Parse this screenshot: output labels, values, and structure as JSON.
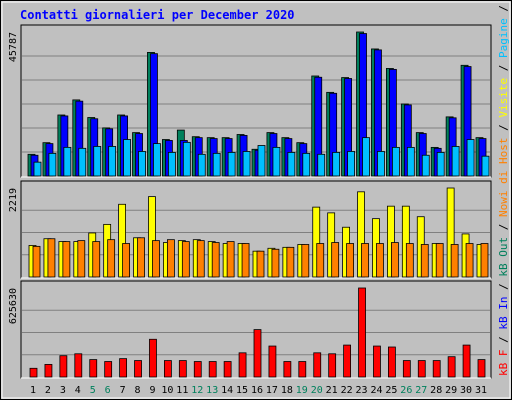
{
  "chart_data": [
    {
      "type": "bar",
      "title": "Contatti giornalieri per December 2020",
      "ylim": [
        0,
        45787
      ],
      "yticks": [
        45787
      ],
      "series": [
        {
          "name": "Contatti",
          "color": "#00805c",
          "values": [
            6900,
            10600,
            19400,
            24200,
            18600,
            15300,
            19400,
            13800,
            39300,
            11600,
            14600,
            12500,
            12200,
            12200,
            13200,
            8500,
            13800,
            12200,
            10600,
            31800,
            26600,
            31300,
            45787,
            40400,
            34200,
            22900,
            13800,
            9100,
            18800,
            35200,
            12200
          ]
        },
        {
          "name": "File",
          "color": "#0000ff",
          "values": [
            6600,
            10300,
            19100,
            23800,
            18200,
            15000,
            19100,
            13500,
            38900,
            11300,
            11300,
            12200,
            11900,
            11900,
            12900,
            8200,
            13500,
            11900,
            10300,
            31400,
            26300,
            31000,
            45300,
            40100,
            33900,
            22600,
            13500,
            8800,
            18500,
            34800,
            11900
          ]
        },
        {
          "name": "Pagine",
          "color": "#00c0ff",
          "values": [
            4400,
            7200,
            9100,
            8800,
            9400,
            9400,
            11600,
            7800,
            10300,
            7500,
            10700,
            6900,
            7200,
            7500,
            7800,
            9700,
            9100,
            7500,
            7200,
            6900,
            7500,
            7800,
            12200,
            7800,
            9100,
            9100,
            6600,
            7500,
            9400,
            11600,
            6300
          ]
        }
      ]
    },
    {
      "type": "bar",
      "ylim": [
        0,
        2219
      ],
      "yticks": [
        2219
      ],
      "series": [
        {
          "name": "Visite",
          "color": "#ffff00",
          "values": [
            787,
            954,
            883,
            883,
            1098,
            1312,
            1813,
            978,
            2004,
            859,
            907,
            931,
            883,
            835,
            835,
            644,
            716,
            740,
            811,
            1742,
            1599,
            1241,
            2124,
            1455,
            1766,
            1766,
            1503,
            835,
            2219,
            1074,
            811
          ]
        },
        {
          "name": "Nowi di Host",
          "color": "#ff8000",
          "values": [
            764,
            954,
            883,
            907,
            883,
            931,
            835,
            978,
            907,
            931,
            883,
            907,
            859,
            883,
            835,
            644,
            692,
            740,
            811,
            835,
            859,
            835,
            835,
            835,
            859,
            835,
            811,
            835,
            811,
            835,
            835
          ]
        }
      ]
    },
    {
      "type": "bar",
      "ylim": [
        0,
        625630
      ],
      "yticks": [
        625630
      ],
      "categories": [
        "1",
        "2",
        "3",
        "4",
        "5",
        "6",
        "7",
        "8",
        "9",
        "10",
        "11",
        "12",
        "13",
        "14",
        "15",
        "16",
        "17",
        "18",
        "19",
        "20",
        "21",
        "22",
        "23",
        "24",
        "25",
        "26",
        "27",
        "28",
        "29",
        "30",
        "31"
      ],
      "category_colors": [
        "#000000",
        "#000000",
        "#000000",
        "#000000",
        "#00805c",
        "#00805c",
        "#000000",
        "#000000",
        "#000000",
        "#000000",
        "#000000",
        "#00805c",
        "#00805c",
        "#000000",
        "#000000",
        "#000000",
        "#000000",
        "#000000",
        "#00805c",
        "#00805c",
        "#000000",
        "#000000",
        "#000000",
        "#000000",
        "#000000",
        "#00805c",
        "#00805c",
        "#000000",
        "#000000",
        "#000000",
        "#000000"
      ],
      "series": [
        {
          "name": "kB F",
          "color": "#ff0000",
          "values": [
            61200,
            88400,
            149600,
            163200,
            122400,
            108800,
            129200,
            115600,
            265200,
            115600,
            115600,
            108800,
            108800,
            108800,
            170000,
            333200,
            217600,
            108800,
            108800,
            170000,
            163200,
            224400,
            625630,
            217600,
            210800,
            115600,
            115600,
            115600,
            142800,
            224400,
            122400
          ]
        },
        {
          "name": "kB In",
          "color": "#0000ff"
        },
        {
          "name": "kB Out",
          "color": "#00805c"
        }
      ]
    }
  ],
  "legend_separator": " / "
}
